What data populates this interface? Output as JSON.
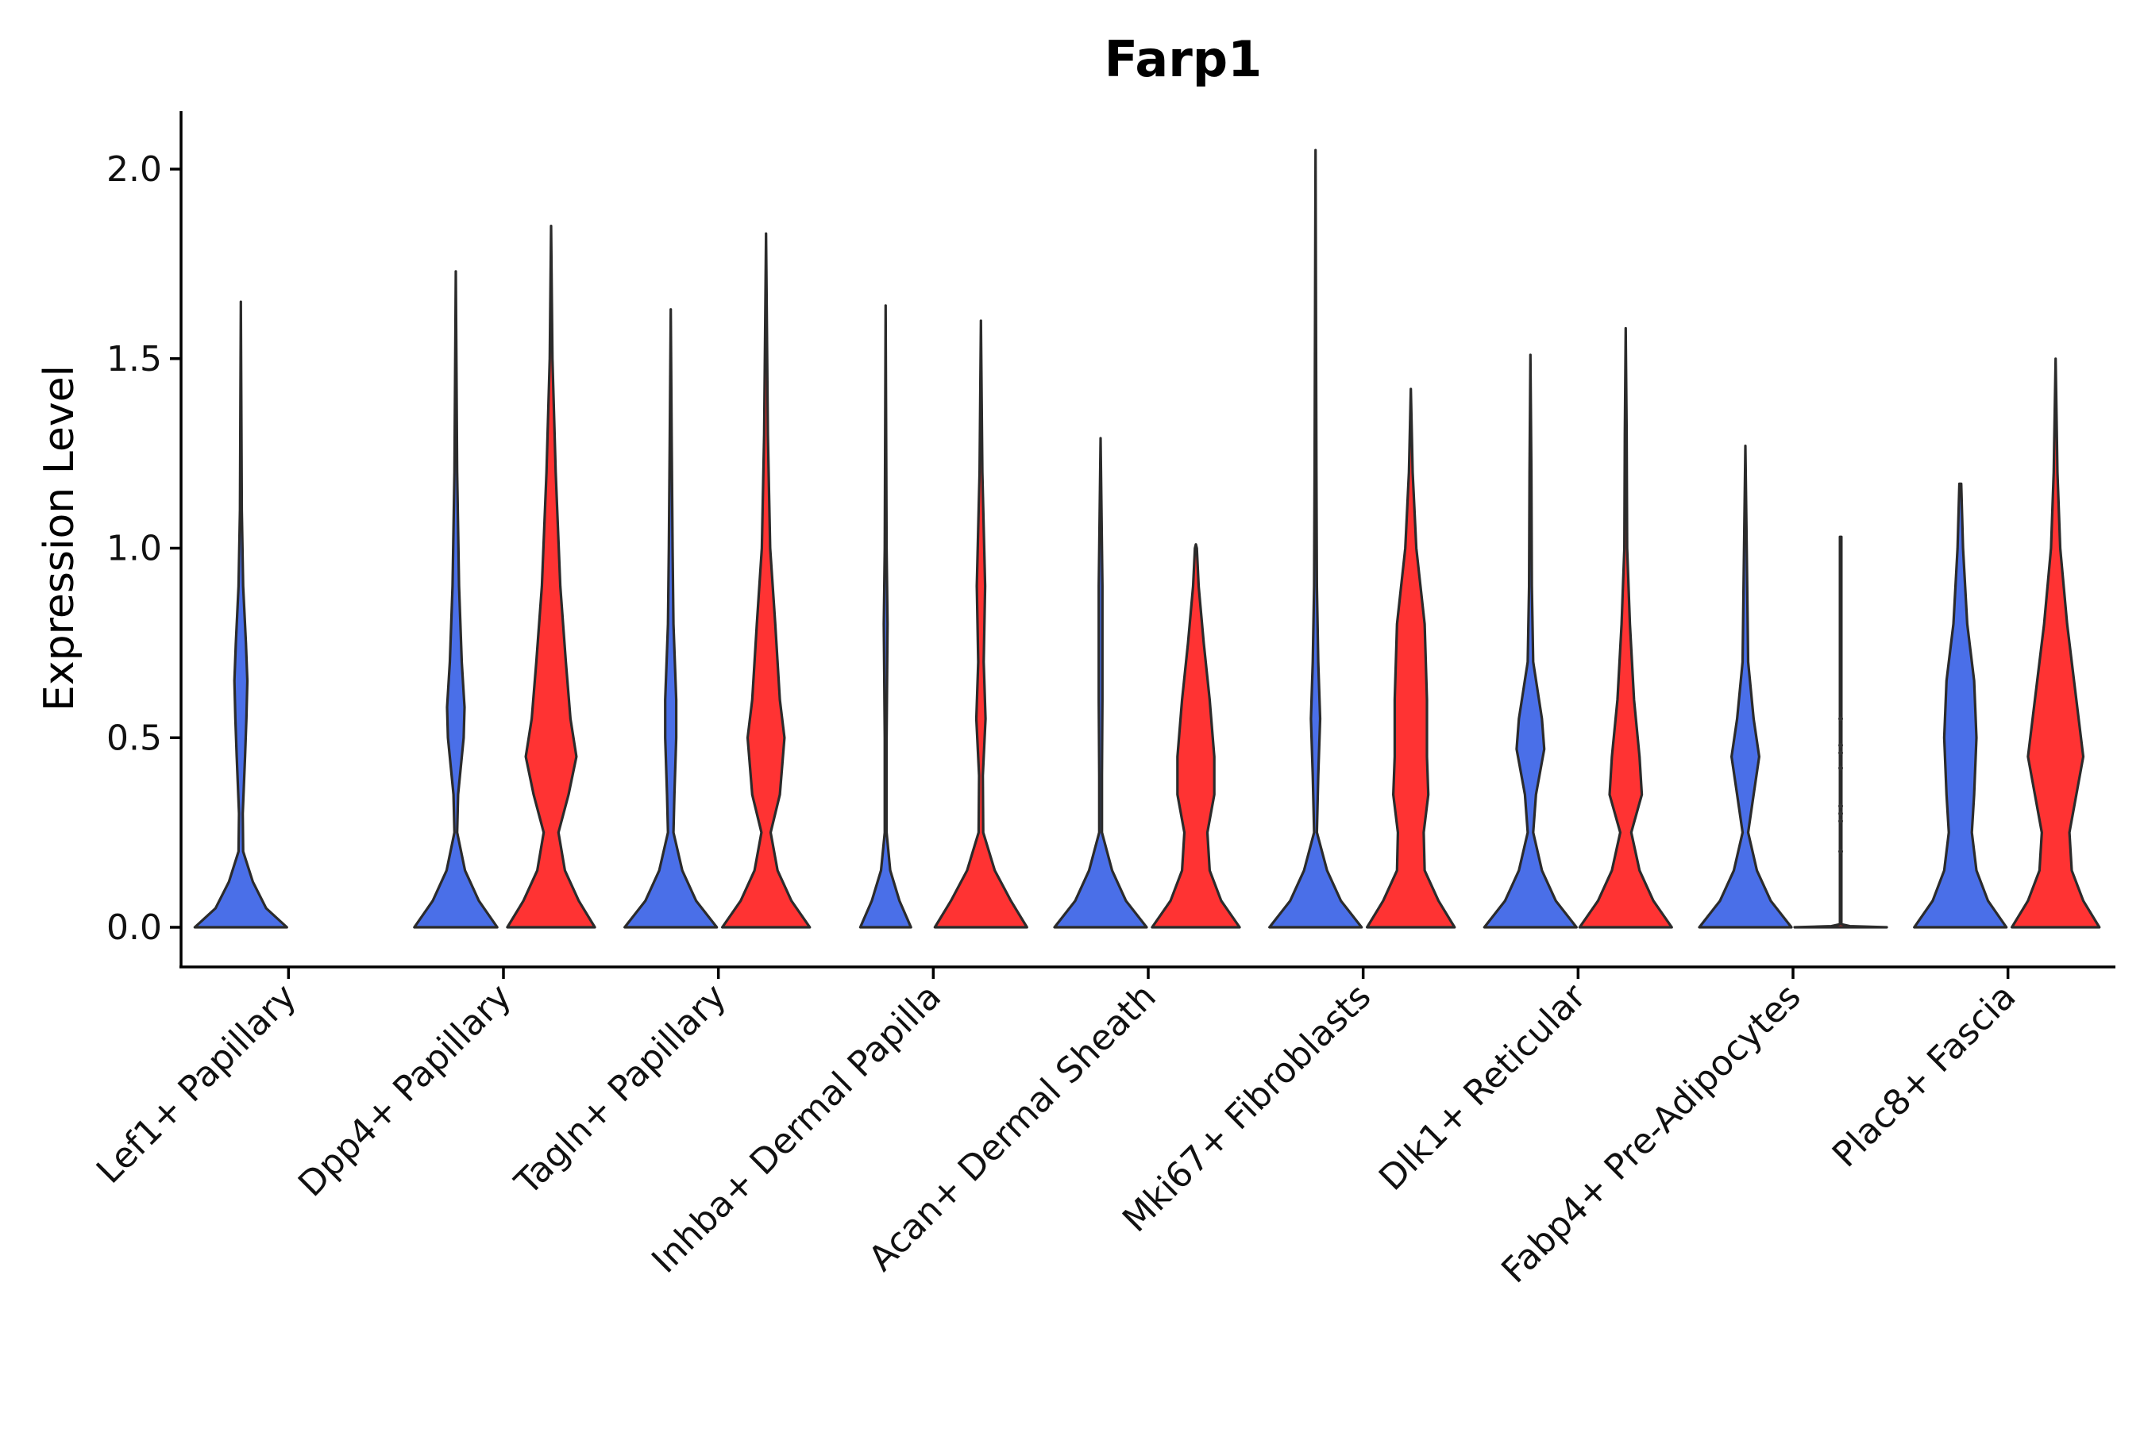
{
  "chart_data": {
    "type": "violin",
    "title": "Farp1",
    "ylabel": "Expression Level",
    "xlabel": "",
    "ylim": [
      -0.1,
      2.15
    ],
    "yticks": [
      "0.0",
      "0.5",
      "1.0",
      "1.5",
      "2.0"
    ],
    "ytick_values": [
      0.0,
      0.5,
      1.0,
      1.5,
      2.0
    ],
    "grid": false,
    "legend": "none",
    "colors": {
      "group_a": "#4A6FE8",
      "group_b": "#FF3333"
    },
    "categories": [
      "Lef1+ Papillary",
      "Dpp4+ Papillary",
      "Tagln+ Papillary",
      "Inhba+ Dermal Papilla",
      "Acan+ Dermal Sheath",
      "Mki67+ Fibroblasts",
      "Dlk1+ Reticular",
      "Fabp4+ Pre-Adipocytes",
      "Plac8+ Fascia"
    ],
    "violins": [
      {
        "category": "Lef1+ Papillary",
        "group": "a",
        "max": 1.65,
        "profile": [
          [
            0,
            1.0
          ],
          [
            0.05,
            0.55
          ],
          [
            0.12,
            0.26
          ],
          [
            0.2,
            0.05
          ],
          [
            0.3,
            0.04
          ],
          [
            0.45,
            0.09
          ],
          [
            0.55,
            0.12
          ],
          [
            0.65,
            0.14
          ],
          [
            0.75,
            0.11
          ],
          [
            0.9,
            0.05
          ],
          [
            1.1,
            0.02
          ],
          [
            1.65,
            0
          ]
        ]
      },
      {
        "category": "Dpp4+ Papillary",
        "group": "a",
        "max": 1.73,
        "profile": [
          [
            0,
            0.9
          ],
          [
            0.07,
            0.5
          ],
          [
            0.15,
            0.2
          ],
          [
            0.25,
            0.03
          ],
          [
            0.35,
            0.05
          ],
          [
            0.5,
            0.17
          ],
          [
            0.58,
            0.19
          ],
          [
            0.7,
            0.13
          ],
          [
            0.9,
            0.07
          ],
          [
            1.2,
            0.03
          ],
          [
            1.73,
            0
          ]
        ]
      },
      {
        "category": "Dpp4+ Papillary",
        "group": "b",
        "max": 1.85,
        "profile": [
          [
            0,
            0.95
          ],
          [
            0.07,
            0.6
          ],
          [
            0.15,
            0.3
          ],
          [
            0.25,
            0.16
          ],
          [
            0.35,
            0.38
          ],
          [
            0.45,
            0.55
          ],
          [
            0.55,
            0.42
          ],
          [
            0.7,
            0.32
          ],
          [
            0.9,
            0.2
          ],
          [
            1.2,
            0.1
          ],
          [
            1.5,
            0.03
          ],
          [
            1.85,
            0
          ]
        ]
      },
      {
        "category": "Tagln+ Papillary",
        "group": "a",
        "max": 1.63,
        "profile": [
          [
            0,
            1.0
          ],
          [
            0.07,
            0.55
          ],
          [
            0.15,
            0.25
          ],
          [
            0.25,
            0.06
          ],
          [
            0.35,
            0.08
          ],
          [
            0.5,
            0.12
          ],
          [
            0.6,
            0.12
          ],
          [
            0.8,
            0.06
          ],
          [
            1.0,
            0.04
          ],
          [
            1.3,
            0.02
          ],
          [
            1.63,
            0
          ]
        ]
      },
      {
        "category": "Tagln+ Papillary",
        "group": "b",
        "max": 1.83,
        "profile": [
          [
            0,
            0.95
          ],
          [
            0.07,
            0.55
          ],
          [
            0.15,
            0.25
          ],
          [
            0.25,
            0.1
          ],
          [
            0.35,
            0.3
          ],
          [
            0.5,
            0.4
          ],
          [
            0.6,
            0.3
          ],
          [
            0.8,
            0.2
          ],
          [
            1.0,
            0.09
          ],
          [
            1.3,
            0.04
          ],
          [
            1.83,
            0
          ]
        ]
      },
      {
        "category": "Inhba+ Dermal Papilla",
        "group": "a",
        "max": 1.64,
        "profile": [
          [
            0,
            0.55
          ],
          [
            0.07,
            0.3
          ],
          [
            0.15,
            0.1
          ],
          [
            0.25,
            0.02
          ],
          [
            0.5,
            0.02
          ],
          [
            0.8,
            0.04
          ],
          [
            1.0,
            0.02
          ],
          [
            1.64,
            0
          ]
        ]
      },
      {
        "category": "Inhba+ Dermal Papilla",
        "group": "b",
        "max": 1.6,
        "profile": [
          [
            0,
            1.0
          ],
          [
            0.07,
            0.65
          ],
          [
            0.15,
            0.3
          ],
          [
            0.25,
            0.05
          ],
          [
            0.4,
            0.04
          ],
          [
            0.55,
            0.1
          ],
          [
            0.7,
            0.06
          ],
          [
            0.9,
            0.09
          ],
          [
            1.2,
            0.03
          ],
          [
            1.6,
            0
          ]
        ]
      },
      {
        "category": "Acan+ Dermal Sheath",
        "group": "a",
        "max": 1.29,
        "profile": [
          [
            0,
            1.0
          ],
          [
            0.07,
            0.55
          ],
          [
            0.15,
            0.25
          ],
          [
            0.25,
            0.03
          ],
          [
            0.4,
            0.03
          ],
          [
            0.6,
            0.04
          ],
          [
            0.9,
            0.04
          ],
          [
            1.29,
            0
          ]
        ]
      },
      {
        "category": "Acan+ Dermal Sheath",
        "group": "b",
        "max": 1.01,
        "profile": [
          [
            0,
            0.95
          ],
          [
            0.07,
            0.55
          ],
          [
            0.15,
            0.3
          ],
          [
            0.25,
            0.25
          ],
          [
            0.35,
            0.4
          ],
          [
            0.45,
            0.4
          ],
          [
            0.6,
            0.3
          ],
          [
            0.75,
            0.17
          ],
          [
            0.9,
            0.06
          ],
          [
            1.0,
            0.02
          ],
          [
            1.01,
            0
          ]
        ]
      },
      {
        "category": "Mki67+ Fibroblasts",
        "group": "a",
        "max": 2.05,
        "profile": [
          [
            0,
            1.0
          ],
          [
            0.07,
            0.55
          ],
          [
            0.15,
            0.25
          ],
          [
            0.25,
            0.03
          ],
          [
            0.4,
            0.06
          ],
          [
            0.55,
            0.1
          ],
          [
            0.7,
            0.06
          ],
          [
            0.9,
            0.03
          ],
          [
            1.2,
            0.02
          ],
          [
            2.05,
            0
          ]
        ]
      },
      {
        "category": "Mki67+ Fibroblasts",
        "group": "b",
        "max": 1.42,
        "profile": [
          [
            0,
            0.95
          ],
          [
            0.07,
            0.6
          ],
          [
            0.15,
            0.3
          ],
          [
            0.25,
            0.28
          ],
          [
            0.35,
            0.38
          ],
          [
            0.45,
            0.35
          ],
          [
            0.6,
            0.35
          ],
          [
            0.8,
            0.3
          ],
          [
            1.0,
            0.12
          ],
          [
            1.2,
            0.04
          ],
          [
            1.42,
            0
          ]
        ]
      },
      {
        "category": "Dlk1+ Reticular",
        "group": "a",
        "max": 1.51,
        "profile": [
          [
            0,
            1.0
          ],
          [
            0.07,
            0.55
          ],
          [
            0.15,
            0.25
          ],
          [
            0.25,
            0.06
          ],
          [
            0.35,
            0.12
          ],
          [
            0.47,
            0.3
          ],
          [
            0.55,
            0.25
          ],
          [
            0.7,
            0.06
          ],
          [
            0.9,
            0.03
          ],
          [
            1.2,
            0.02
          ],
          [
            1.51,
            0
          ]
        ]
      },
      {
        "category": "Dlk1+ Reticular",
        "group": "b",
        "max": 1.58,
        "profile": [
          [
            0,
            1.0
          ],
          [
            0.07,
            0.6
          ],
          [
            0.15,
            0.3
          ],
          [
            0.25,
            0.12
          ],
          [
            0.35,
            0.35
          ],
          [
            0.45,
            0.3
          ],
          [
            0.6,
            0.18
          ],
          [
            0.8,
            0.09
          ],
          [
            1.0,
            0.03
          ],
          [
            1.3,
            0.02
          ],
          [
            1.58,
            0
          ]
        ]
      },
      {
        "category": "Fabp4+ Pre-Adipocytes",
        "group": "a",
        "max": 1.27,
        "profile": [
          [
            0,
            1.0
          ],
          [
            0.07,
            0.55
          ],
          [
            0.15,
            0.25
          ],
          [
            0.25,
            0.06
          ],
          [
            0.35,
            0.18
          ],
          [
            0.45,
            0.3
          ],
          [
            0.55,
            0.18
          ],
          [
            0.7,
            0.06
          ],
          [
            0.9,
            0.04
          ],
          [
            1.27,
            0
          ]
        ]
      },
      {
        "category": "Fabp4+ Pre-Adipocytes",
        "group": "b",
        "max": 1.03,
        "profile": [
          [
            0,
            1.0
          ],
          [
            0.003,
            0.2
          ],
          [
            0.008,
            0.015
          ],
          [
            1.03,
            0.015
          ]
        ],
        "points": [
          0.2,
          0.28,
          0.3,
          0.32,
          0.42,
          0.46,
          0.48,
          0.55
        ]
      },
      {
        "category": "Plac8+ Fascia",
        "group": "a",
        "max": 1.17,
        "profile": [
          [
            0,
            1.0
          ],
          [
            0.07,
            0.6
          ],
          [
            0.15,
            0.35
          ],
          [
            0.25,
            0.25
          ],
          [
            0.35,
            0.3
          ],
          [
            0.5,
            0.35
          ],
          [
            0.65,
            0.3
          ],
          [
            0.8,
            0.15
          ],
          [
            1.0,
            0.06
          ],
          [
            1.17,
            0.02
          ]
        ]
      },
      {
        "category": "Plac8+ Fascia",
        "group": "b",
        "max": 1.5,
        "profile": [
          [
            0,
            0.95
          ],
          [
            0.07,
            0.6
          ],
          [
            0.15,
            0.35
          ],
          [
            0.25,
            0.3
          ],
          [
            0.35,
            0.45
          ],
          [
            0.45,
            0.6
          ],
          [
            0.6,
            0.45
          ],
          [
            0.8,
            0.25
          ],
          [
            1.0,
            0.1
          ],
          [
            1.2,
            0.04
          ],
          [
            1.5,
            0
          ]
        ]
      }
    ]
  }
}
